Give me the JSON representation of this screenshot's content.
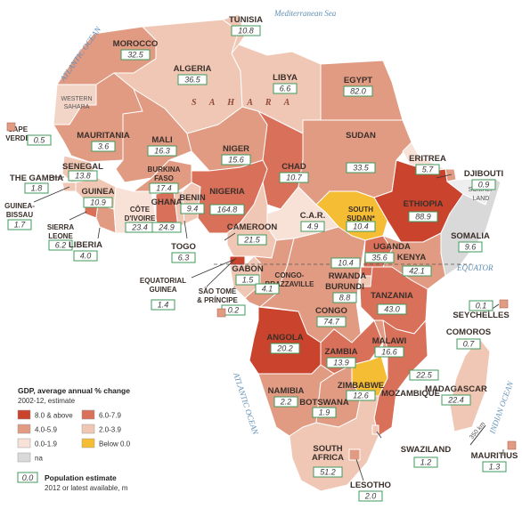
{
  "seas": {
    "atlantic_north": "ATLANTIC OCEAN",
    "mediterranean": "Mediterranean Sea",
    "atlantic_south": "ATLANTIC OCEAN",
    "indian": "INDIAN OCEAN",
    "sahara": "S A H A R A",
    "somaliland": "SOMALI-LAND",
    "western_sahara": "WESTERN SAHARA",
    "equator": "EQUATOR"
  },
  "scale": "350 km",
  "legend": {
    "title": "GDP, average annual % change",
    "subtitle": "2002-12, estimate",
    "items": [
      {
        "label": "8.0 & above",
        "color": "#c9432d"
      },
      {
        "label": "6.0-7.9",
        "color": "#d8705a"
      },
      {
        "label": "4.0-5.9",
        "color": "#e19b83"
      },
      {
        "label": "2.0-3.9",
        "color": "#f0c7b4"
      },
      {
        "label": "0.0-1.9",
        "color": "#f8e2d8"
      },
      {
        "label": "Below 0.0",
        "color": "#f4bd33"
      },
      {
        "label": "na",
        "color": "#d9d9d9"
      }
    ],
    "pop_box": "0.0",
    "pop_title": "Population estimate",
    "pop_sub": "2012 or latest available, m"
  },
  "countries": [
    {
      "name": "TUNISIA",
      "pop": "10.8",
      "color": "#f0c7b4"
    },
    {
      "name": "MOROCCO",
      "pop": "32.5",
      "color": "#e19b83"
    },
    {
      "name": "ALGERIA",
      "pop": "36.5",
      "color": "#f0c7b4"
    },
    {
      "name": "LIBYA",
      "pop": "6.6",
      "color": "#f0c7b4"
    },
    {
      "name": "EGYPT",
      "pop": "82.0",
      "color": "#e19b83"
    },
    {
      "name": "CAPE VERDE",
      "pop": "0.5",
      "color": "#e19b83"
    },
    {
      "name": "MAURITANIA",
      "pop": "3.6",
      "color": "#e19b83"
    },
    {
      "name": "MALI",
      "pop": "16.3",
      "color": "#e19b83"
    },
    {
      "name": "NIGER",
      "pop": "15.6",
      "color": "#e19b83"
    },
    {
      "name": "CHAD",
      "pop": "10.7",
      "color": "#d8705a"
    },
    {
      "name": "SUDAN",
      "pop": "33.5",
      "color": "#e19b83"
    },
    {
      "name": "ERITREA",
      "pop": "5.7",
      "color": "#f8e2d8"
    },
    {
      "name": "DJIBOUTI",
      "pop": "0.9",
      "color": "#e19b83"
    },
    {
      "name": "SENEGAL",
      "pop": "13.8",
      "color": "#f0c7b4"
    },
    {
      "name": "THE GAMBIA",
      "pop": "1.8",
      "color": "#f0c7b4"
    },
    {
      "name": "GUINEA",
      "pop": "10.9",
      "color": "#f0c7b4"
    },
    {
      "name": "GUINEA-BISSAU",
      "pop": "1.7",
      "color": "#f0c7b4"
    },
    {
      "name": "SIERRA LEONE",
      "pop": "6.2",
      "color": "#d8705a"
    },
    {
      "name": "LIBERIA",
      "pop": "4.0",
      "color": "#e19b83"
    },
    {
      "name": "CÔTE D'IVOIRE",
      "pop": "23.4",
      "color": "#f8e2d8"
    },
    {
      "name": "BURKINA FASO",
      "pop": "17.4",
      "color": "#e19b83"
    },
    {
      "name": "GHANA",
      "pop": "24.9",
      "color": "#d8705a"
    },
    {
      "name": "BENIN",
      "pop": "9.4",
      "color": "#f0c7b4"
    },
    {
      "name": "TOGO",
      "pop": "6.3",
      "color": "#f0c7b4"
    },
    {
      "name": "NIGERIA",
      "pop": "164.8",
      "color": "#d8705a"
    },
    {
      "name": "CAMEROON",
      "pop": "21.5",
      "color": "#f0c7b4"
    },
    {
      "name": "C.A.R.",
      "pop": "4.9",
      "color": "#f8e2d8"
    },
    {
      "name": "SOUTH SUDAN*",
      "pop": "10.4",
      "color": "#f4bd33"
    },
    {
      "name": "ETHIOPIA",
      "pop": "88.9",
      "color": "#c9432d"
    },
    {
      "name": "SOMALIA",
      "pop": "9.6",
      "color": "#d9d9d9"
    },
    {
      "name": "EQUATORIAL GUINEA",
      "pop": "1.4",
      "color": "#c9432d"
    },
    {
      "name": "SÃO TOMÉ & PRÍNCIPE",
      "pop": "0.2",
      "color": "#e19b83"
    },
    {
      "name": "GABON",
      "pop": "1.5",
      "color": "#f0c7b4"
    },
    {
      "name": "CONGO-BRAZZAVILLE",
      "pop": "4.1",
      "color": "#e19b83"
    },
    {
      "name": "UGANDA",
      "pop": "35.6",
      "color": "#d8705a"
    },
    {
      "name": "KENYA",
      "pop": "42.1",
      "color": "#e19b83"
    },
    {
      "name": "RWANDA",
      "pop": "10.4",
      "color": "#d8705a"
    },
    {
      "name": "BURUNDI",
      "pop": "8.8",
      "color": "#f0c7b4"
    },
    {
      "name": "CONGO",
      "pop": "74.7",
      "color": "#e19b83"
    },
    {
      "name": "TANZANIA",
      "pop": "43.0",
      "color": "#d8705a"
    },
    {
      "name": "SEYCHELLES",
      "pop": "0.1",
      "color": "#e19b83"
    },
    {
      "name": "ANGOLA",
      "pop": "20.2",
      "color": "#c9432d"
    },
    {
      "name": "ZAMBIA",
      "pop": "13.9",
      "color": "#d8705a"
    },
    {
      "name": "MALAWI",
      "pop": "16.6",
      "color": "#e19b83"
    },
    {
      "name": "COMOROS",
      "pop": "0.7",
      "color": "#f8e2d8"
    },
    {
      "name": "MOZAMBIQUE",
      "pop": "22.5",
      "color": "#d8705a"
    },
    {
      "name": "ZIMBABWE",
      "pop": "12.6",
      "color": "#f4bd33"
    },
    {
      "name": "MADAGASCAR",
      "pop": "22.4",
      "color": "#f0c7b4"
    },
    {
      "name": "NAMIBIA",
      "pop": "2.2",
      "color": "#e19b83"
    },
    {
      "name": "BOTSWANA",
      "pop": "1.9",
      "color": "#e19b83"
    },
    {
      "name": "MAURITIUS",
      "pop": "1.3",
      "color": "#e19b83"
    },
    {
      "name": "SWAZILAND",
      "pop": "1.2",
      "color": "#f0c7b4"
    },
    {
      "name": "SOUTH AFRICA",
      "pop": "51.2",
      "color": "#f0c7b4"
    },
    {
      "name": "LESOTHO",
      "pop": "2.0",
      "color": "#e19b83"
    }
  ]
}
